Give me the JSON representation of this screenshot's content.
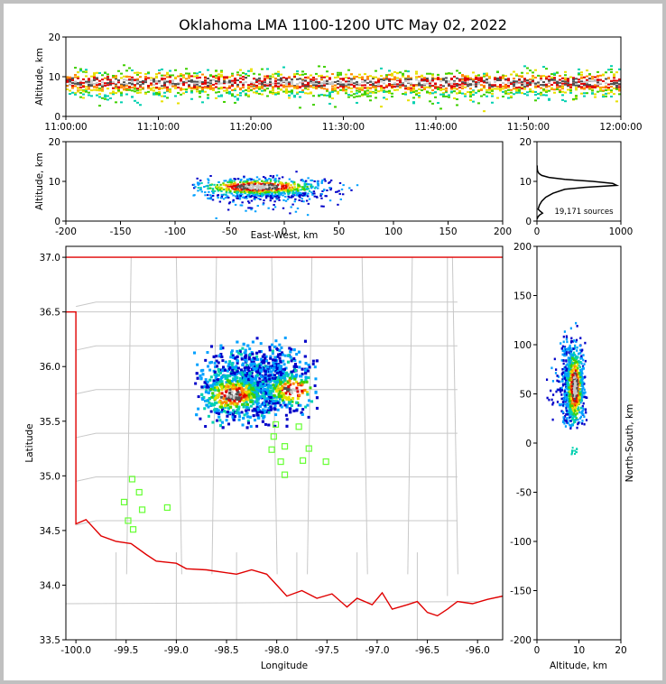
{
  "colors": {
    "plot_bg": "#ffffff",
    "state_boundary": "#e00000",
    "county_lines": "#c8c8c8",
    "station_marker": "#66ff33",
    "density_ramp": [
      "#0000c8",
      "#00a0ff",
      "#00d0b0",
      "#40d000",
      "#e8e000",
      "#ff8800",
      "#e00000",
      "#505050",
      "#c8c8c8"
    ]
  },
  "chart_data": [
    {
      "id": "time-altitude",
      "type": "heatmap",
      "title": "Oklahoma LMA 1100-1200 UTC May 02, 2022",
      "xlabel": "",
      "ylabel": "Altitude, km",
      "xlim": [
        "11:00:00",
        "12:00:00"
      ],
      "ylim": [
        0,
        20
      ],
      "xticks": [
        "11:00:00",
        "11:10:00",
        "11:20:00",
        "11:30:00",
        "11:40:00",
        "11:50:00",
        "12:00:00"
      ],
      "yticks": [
        0,
        10,
        20
      ],
      "core_altitude_km": [
        6,
        11
      ]
    },
    {
      "id": "east-west-altitude",
      "type": "heatmap",
      "xlabel": "East-West, km",
      "ylabel": "Altitude, km",
      "xlim": [
        -200,
        200
      ],
      "ylim": [
        0,
        20
      ],
      "xticks": [
        -200,
        -150,
        -100,
        -50,
        0,
        50,
        100,
        150,
        200
      ],
      "yticks": [
        0,
        10,
        20
      ]
    },
    {
      "id": "altitude-histogram",
      "type": "line",
      "xlim": [
        0,
        1000
      ],
      "ylim": [
        0,
        20
      ],
      "xticks": [
        0,
        1000
      ],
      "yticks": [
        0,
        10,
        20
      ],
      "annotation": "19,171 sources",
      "series": [
        {
          "x": [
            2,
            10,
            30,
            70,
            40,
            15,
            30,
            60,
            110,
            200,
            350,
            600,
            850,
            1000,
            950,
            700,
            350,
            150,
            60,
            25,
            10,
            4,
            2
          ],
          "y": [
            0.5,
            1.0,
            1.5,
            2.0,
            2.5,
            3.0,
            4.0,
            5.0,
            6.0,
            7.0,
            8.0,
            8.5,
            8.8,
            9.0,
            9.5,
            10.0,
            10.5,
            11.0,
            11.5,
            12.0,
            12.5,
            13.0,
            14.0
          ]
        }
      ]
    },
    {
      "id": "plan-view",
      "type": "heatmap",
      "xlabel": "Longitude",
      "ylabel": "Latitude",
      "xlim": [
        -100.1,
        -95.75
      ],
      "ylim": [
        33.5,
        37.1
      ],
      "xticks": [
        "-100.0",
        "-99.5",
        "-99.0",
        "-98.5",
        "-98.0",
        "-97.5",
        "-97.0",
        "-96.5",
        "-96.0"
      ],
      "yticks": [
        "33.5",
        "34.0",
        "34.5",
        "35.0",
        "35.5",
        "36.0",
        "36.5",
        "37.0"
      ],
      "stations": [
        {
          "lon": -99.44,
          "lat": 34.97
        },
        {
          "lon": -99.37,
          "lat": 34.85
        },
        {
          "lon": -99.52,
          "lat": 34.76
        },
        {
          "lon": -99.34,
          "lat": 34.69
        },
        {
          "lon": -99.48,
          "lat": 34.59
        },
        {
          "lon": -99.43,
          "lat": 34.51
        },
        {
          "lon": -99.09,
          "lat": 34.71
        },
        {
          "lon": -98.01,
          "lat": 35.47
        },
        {
          "lon": -98.03,
          "lat": 35.36
        },
        {
          "lon": -97.92,
          "lat": 35.27
        },
        {
          "lon": -98.05,
          "lat": 35.24
        },
        {
          "lon": -97.96,
          "lat": 35.13
        },
        {
          "lon": -97.92,
          "lat": 35.01
        },
        {
          "lon": -97.78,
          "lat": 35.45
        },
        {
          "lon": -97.68,
          "lat": 35.25
        },
        {
          "lon": -97.74,
          "lat": 35.14
        },
        {
          "lon": -97.51,
          "lat": 35.13
        }
      ],
      "source_cluster": {
        "lon": [
          -98.85,
          -97.6
        ],
        "lat": [
          35.45,
          36.3
        ]
      }
    },
    {
      "id": "altitude-north-south",
      "type": "heatmap",
      "xlabel": "Altitude, km",
      "ylabel": "North-South, km",
      "xlim": [
        0,
        20
      ],
      "ylim": [
        -200,
        200
      ],
      "xticks": [
        0,
        10,
        20
      ],
      "yticks": [
        -200,
        -150,
        -100,
        -50,
        0,
        50,
        100,
        150,
        200
      ]
    }
  ]
}
